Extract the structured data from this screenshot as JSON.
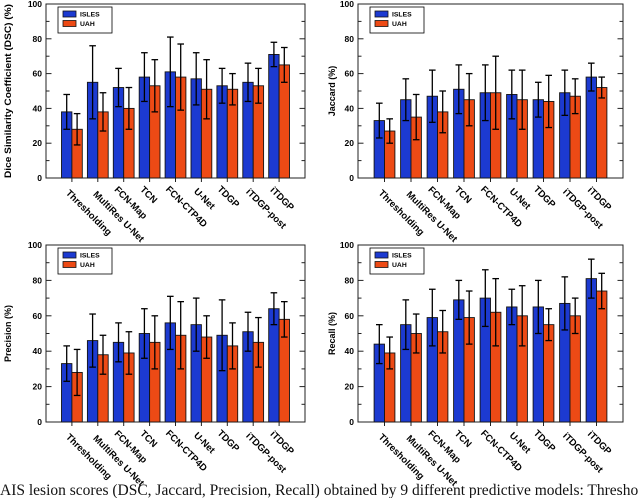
{
  "figure": {
    "caption_visible": "AIS lesion scores (DSC, Jaccard, Precision, Recall) obtained by 9 different predictive models: Thresho"
  },
  "chart_data": [
    {
      "id": "dsc",
      "type": "bar",
      "title": "",
      "ylabel": "Dice Similarity Coefficient (DSC) (%)",
      "ylim": [
        0,
        100
      ],
      "yticks": [
        0,
        20,
        40,
        60,
        80,
        100
      ],
      "minor_tick_step": 10,
      "grid": false,
      "legend_position": "upper left",
      "categories": [
        "Thresholding",
        "MultiRes U-Net",
        "FCN-Map",
        "TCN",
        "FCN-CTP4D",
        "U-Net",
        "TDGP",
        "iTDGP-post",
        "iTDGP"
      ],
      "series": [
        {
          "name": "ISLES",
          "color": "#1c3ad1",
          "values": [
            38,
            55,
            52,
            58,
            61,
            57,
            53,
            55,
            71
          ],
          "errors": [
            10,
            21,
            11,
            14,
            20,
            15,
            10,
            11,
            7
          ]
        },
        {
          "name": "UAH",
          "color": "#ed4a15",
          "values": [
            28,
            38,
            40,
            53,
            58,
            51,
            51,
            53,
            65
          ],
          "errors": [
            9,
            11,
            12,
            15,
            19,
            17,
            9,
            10,
            10
          ]
        }
      ]
    },
    {
      "id": "jaccard",
      "type": "bar",
      "title": "",
      "ylabel": "Jaccard (%)",
      "ylim": [
        0,
        100
      ],
      "yticks": [
        0,
        20,
        40,
        60,
        80,
        100
      ],
      "minor_tick_step": 10,
      "grid": false,
      "legend_position": "upper left",
      "categories": [
        "Thresholding",
        "MultiRes U-Net",
        "FCN-Map",
        "TCN",
        "FCN-CTP4D",
        "U-Net",
        "TDGP",
        "iTDGP-post",
        "iTDGP"
      ],
      "series": [
        {
          "name": "ISLES",
          "color": "#1c3ad1",
          "values": [
            33,
            45,
            47,
            51,
            49,
            48,
            45,
            49,
            58
          ],
          "errors": [
            10,
            12,
            15,
            14,
            16,
            14,
            10,
            13,
            8
          ]
        },
        {
          "name": "UAH",
          "color": "#ed4a15",
          "values": [
            27,
            35,
            38,
            45,
            49,
            45,
            44,
            47,
            52
          ],
          "errors": [
            7,
            13,
            12,
            15,
            21,
            17,
            15,
            10,
            6
          ]
        }
      ]
    },
    {
      "id": "precision",
      "type": "bar",
      "title": "",
      "ylabel": "Precision (%)",
      "ylim": [
        0,
        100
      ],
      "yticks": [
        0,
        20,
        40,
        60,
        80,
        100
      ],
      "minor_tick_step": 10,
      "grid": false,
      "legend_position": "upper left",
      "categories": [
        "Thresholding",
        "MultiRes U-Net",
        "FCN-Map",
        "TCN",
        "FCN-CTP4D",
        "U-Net",
        "TDGP",
        "iTDGP-post",
        "iTDGP"
      ],
      "series": [
        {
          "name": "ISLES",
          "color": "#1c3ad1",
          "values": [
            33,
            46,
            45,
            50,
            56,
            55,
            49,
            51,
            64
          ],
          "errors": [
            10,
            15,
            11,
            14,
            15,
            15,
            20,
            11,
            9
          ]
        },
        {
          "name": "UAH",
          "color": "#ed4a15",
          "values": [
            28,
            38,
            39,
            45,
            49,
            48,
            43,
            45,
            58
          ],
          "errors": [
            13,
            11,
            12,
            15,
            19,
            12,
            13,
            14,
            10
          ]
        }
      ]
    },
    {
      "id": "recall",
      "type": "bar",
      "title": "",
      "ylabel": "Recall (%)",
      "ylim": [
        0,
        100
      ],
      "yticks": [
        0,
        20,
        40,
        60,
        80,
        100
      ],
      "minor_tick_step": 10,
      "grid": false,
      "legend_position": "upper left",
      "categories": [
        "Thresholding",
        "MultiRes U-Net",
        "FCN-Map",
        "TCN",
        "FCN-CTP4D",
        "U-Net",
        "TDGP",
        "iTDGP-post",
        "iTDGP"
      ],
      "series": [
        {
          "name": "ISLES",
          "color": "#1c3ad1",
          "values": [
            44,
            55,
            59,
            69,
            70,
            65,
            65,
            67,
            81
          ],
          "errors": [
            11,
            14,
            16,
            11,
            16,
            10,
            15,
            15,
            11
          ]
        },
        {
          "name": "UAH",
          "color": "#ed4a15",
          "values": [
            39,
            50,
            51,
            59,
            62,
            60,
            55,
            60,
            74
          ],
          "errors": [
            9,
            11,
            12,
            15,
            19,
            17,
            9,
            10,
            10
          ]
        }
      ]
    }
  ]
}
